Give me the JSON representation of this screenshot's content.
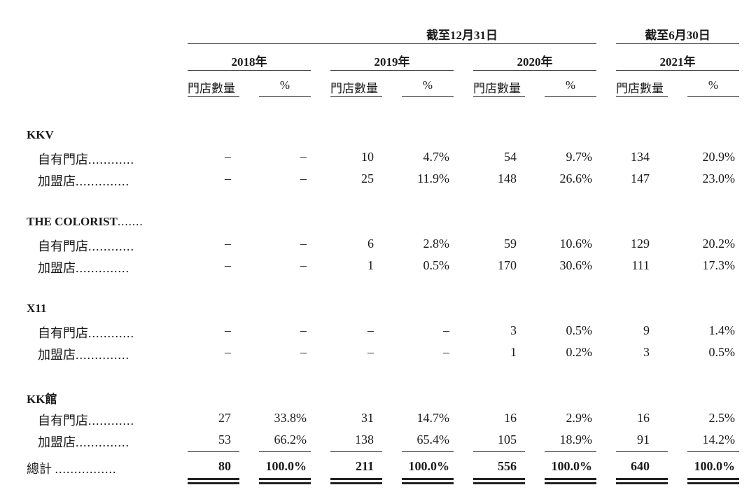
{
  "header": {
    "group_dec": "截至12月31日",
    "group_jun": "截至6月30日",
    "years": [
      "2018年",
      "2019年",
      "2020年",
      "2021年"
    ],
    "col_count": "門店數量",
    "col_pct": "%"
  },
  "sections": [
    {
      "title": "KKV",
      "title_suffix": "",
      "rows": [
        {
          "label": "自有門店",
          "leader": "............",
          "values": [
            "–",
            "–",
            "10",
            "4.7%",
            "54",
            "9.7%",
            "134",
            "20.9%"
          ]
        },
        {
          "label": "加盟店",
          "leader": "..............",
          "values": [
            "–",
            "–",
            "25",
            "11.9%",
            "148",
            "26.6%",
            "147",
            "23.0%"
          ]
        }
      ]
    },
    {
      "title": "THE COLORIST",
      "title_suffix": ".......",
      "rows": [
        {
          "label": "自有門店",
          "leader": "............",
          "values": [
            "–",
            "–",
            "6",
            "2.8%",
            "59",
            "10.6%",
            "129",
            "20.2%"
          ]
        },
        {
          "label": "加盟店",
          "leader": "..............",
          "values": [
            "–",
            "–",
            "1",
            "0.5%",
            "170",
            "30.6%",
            "111",
            "17.3%"
          ]
        }
      ]
    },
    {
      "title": "X11",
      "title_suffix": "",
      "rows": [
        {
          "label": "自有門店",
          "leader": "............",
          "values": [
            "–",
            "–",
            "–",
            "–",
            "3",
            "0.5%",
            "9",
            "1.4%"
          ]
        },
        {
          "label": "加盟店",
          "leader": "..............",
          "values": [
            "–",
            "–",
            "–",
            "–",
            "1",
            "0.2%",
            "3",
            "0.5%"
          ]
        }
      ]
    },
    {
      "title": "KK館",
      "title_suffix": "",
      "rows": [
        {
          "label": "自有門店",
          "leader": "............",
          "values": [
            "27",
            "33.8%",
            "31",
            "14.7%",
            "16",
            "2.9%",
            "16",
            "2.5%"
          ]
        },
        {
          "label": "加盟店",
          "leader": "..............",
          "values": [
            "53",
            "66.2%",
            "138",
            "65.4%",
            "105",
            "18.9%",
            "91",
            "14.2%"
          ]
        }
      ]
    }
  ],
  "total": {
    "label": "總計",
    "leader": "................",
    "values": [
      "80",
      "100.0%",
      "211",
      "100.0%",
      "556",
      "100.0%",
      "640",
      "100.0%"
    ]
  }
}
